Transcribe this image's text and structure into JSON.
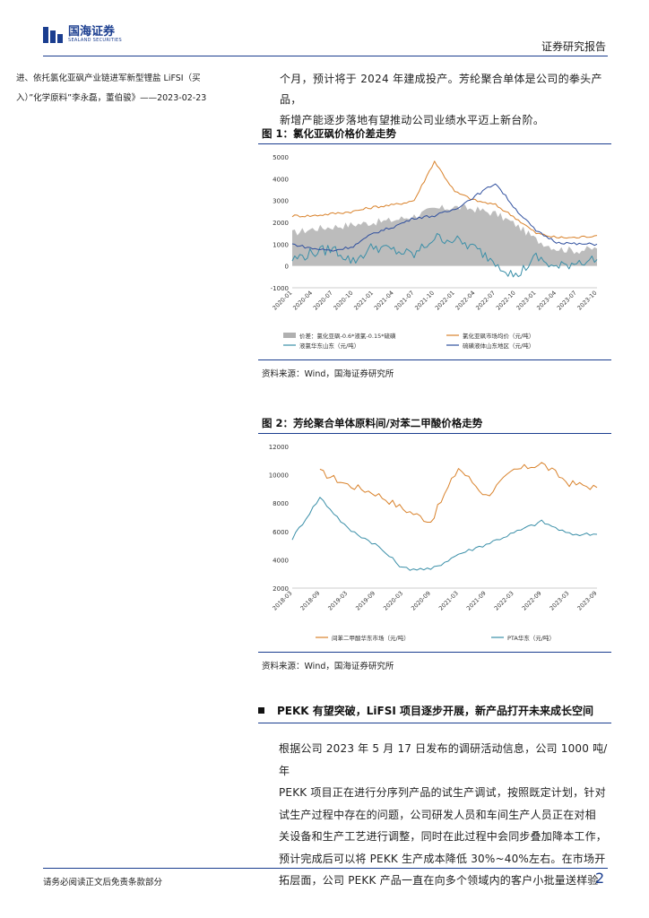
{
  "header": {
    "logo_cn": "国海证券",
    "logo_en": "SEALAND SECURITIES",
    "report_type": "证券研究报告"
  },
  "left_column": {
    "lines": [
      "进、依托氯化亚砜产业链进军新型锂盐 LiFSI（买",
      "入）”化学原料”李永磊，董伯骏》——2023-02-23"
    ]
  },
  "right_column": {
    "lines": [
      "个月，预计将于 2024 年建成投产。芳纶聚合单体是公司的拳头产品，",
      "新增产能逐步落地有望推动公司业绩水平迈上新台阶。"
    ]
  },
  "figure1": {
    "title": "图 1：氯化亚砜价格价差走势",
    "source": "资料来源：Wind，国海证券研究所",
    "legend": [
      {
        "label": "价差：氯化亚砜-0.6*液氯-0.15*硫磺",
        "color": "#b0b0b0",
        "type": "area"
      },
      {
        "label": "氯化亚砜市场均价（元/吨）",
        "color": "#d9822b",
        "type": "line"
      },
      {
        "label": "液氯华东山东（元/吨）",
        "color": "#3a8fa8",
        "type": "line"
      },
      {
        "label": "硫磺液体山东地区（元/吨）",
        "color": "#2f4f9e",
        "type": "line"
      }
    ]
  },
  "figure2": {
    "title": "图 2：芳纶聚合单体原料间/对苯二甲酸价格走势",
    "source": "资料来源：Wind，国海证券研究所",
    "legend": [
      {
        "label": "间苯二甲酸华东市场（元/吨）",
        "color": "#d9822b"
      },
      {
        "label": "PTA华东（元/吨）",
        "color": "#3a8fa8"
      }
    ]
  },
  "section": {
    "heading": "PEKK 有望突破，LiFSI 项目逐步开展，新产品打开未来成长空间",
    "paragraph_lines": [
      "根据公司 2023 年 5 月 17 日发布的调研活动信息，公司 1000 吨/年",
      "PEKK 项目正在进行分序列产品的试生产调试，按照既定计划，针对",
      "试生产过程中存在的问题，公司研发人员和车间生产人员正在对相",
      "关设备和生产工艺进行调整，同时在此过程中会同步叠加降本工作，",
      "预计完成后可以将 PEKK 生产成本降低 30%~40%左右。在市场开",
      "拓层面，公司 PEKK 产品一直在向多个领域内的客户小批量送样验"
    ]
  },
  "footer": {
    "disclaimer": "请务必阅读正文后免责条款部分",
    "page": "2"
  },
  "chart_data": [
    {
      "type": "line",
      "title": "图 1：氯化亚砜价格价差走势",
      "x": [
        "2020-01",
        "2020-04",
        "2020-07",
        "2020-10",
        "2021-01",
        "2021-04",
        "2021-07",
        "2021-10",
        "2022-01",
        "2022-04",
        "2022-07",
        "2022-10",
        "2023-01",
        "2023-04",
        "2023-07",
        "2023-10"
      ],
      "ylim": [
        -1000,
        5000
      ],
      "yticks": [
        "5000",
        "4000",
        "3000",
        "2000",
        "1000",
        "0",
        "-1000"
      ],
      "series": [
        {
          "name": "价差：氯化亚砜-0.6*液氯-0.15*硫磺",
          "type": "area",
          "values": [
            1500,
            1700,
            1800,
            1900,
            2000,
            2100,
            2300,
            2600,
            2700,
            2600,
            2400,
            1900,
            1200,
            800,
            700,
            800
          ]
        },
        {
          "name": "氯化亚砜市场均价（元/吨）",
          "values": [
            2300,
            2300,
            2400,
            2500,
            2700,
            2800,
            3000,
            4800,
            3400,
            3000,
            2800,
            2200,
            1500,
            1300,
            1300,
            1400
          ]
        },
        {
          "name": "液氯华东山东（元/吨）",
          "values": [
            300,
            600,
            800,
            200,
            900,
            700,
            500,
            1300,
            1200,
            800,
            200,
            -500,
            400,
            -100,
            200,
            300
          ]
        },
        {
          "name": "硫磺液体山东地区（元/吨）",
          "values": [
            1000,
            800,
            700,
            900,
            1500,
            1800,
            2200,
            2300,
            2600,
            3200,
            3800,
            2600,
            1600,
            1100,
            1000,
            1000
          ]
        }
      ]
    },
    {
      "type": "line",
      "title": "图 2：芳纶聚合单体原料间/对苯二甲酸价格走势",
      "x": [
        "2018-03",
        "2018-09",
        "2019-03",
        "2019-09",
        "2020-03",
        "2020-09",
        "2021-03",
        "2021-09",
        "2022-03",
        "2022-09",
        "2023-03",
        "2023-09"
      ],
      "ylim": [
        2000,
        12000
      ],
      "yticks": [
        "12000",
        "10000",
        "8000",
        "6000",
        "4000",
        "2000"
      ],
      "series": [
        {
          "name": "间苯二甲酸华东市场（元/吨）",
          "values": [
            null,
            10200,
            9300,
            8700,
            7600,
            6700,
            10500,
            8500,
            10300,
            10800,
            9400,
            9100
          ]
        },
        {
          "name": "PTA华东（元/吨）",
          "values": [
            5500,
            8400,
            6200,
            5100,
            3400,
            3300,
            4400,
            5100,
            5900,
            6700,
            5800,
            5800
          ]
        }
      ]
    }
  ]
}
